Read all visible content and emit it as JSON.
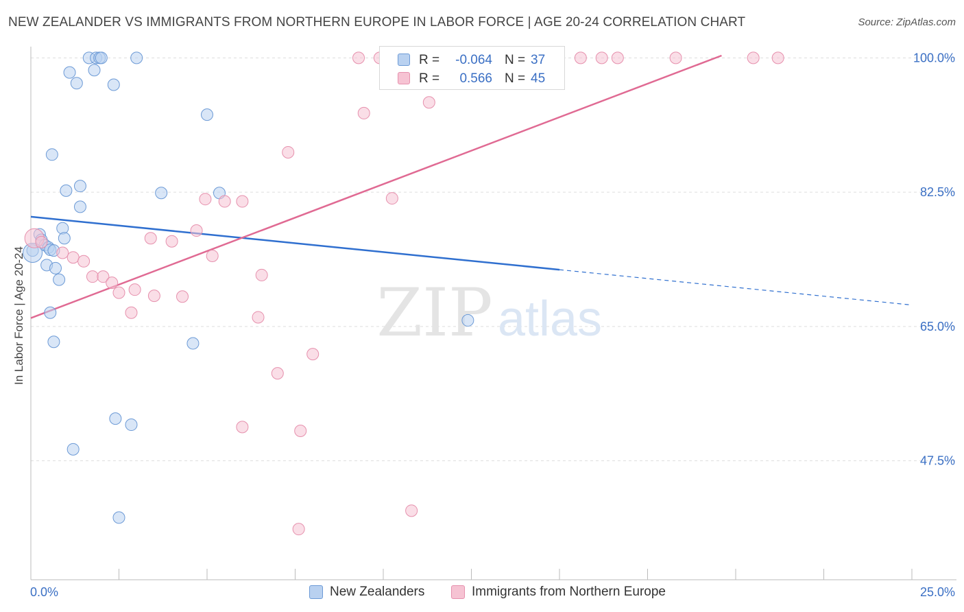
{
  "title": "NEW ZEALANDER VS IMMIGRANTS FROM NORTHERN EUROPE IN LABOR FORCE | AGE 20-24 CORRELATION CHART",
  "source": "Source: ZipAtlas.com",
  "watermark": {
    "zip": "ZIP",
    "atlas": "atlas"
  },
  "stats": {
    "row1": {
      "r_label": "R =",
      "r_value": "-0.064",
      "n_label": "N =",
      "n_value": "37"
    },
    "row2": {
      "r_label": "R =",
      "r_value": "0.566",
      "n_label": "N =",
      "n_value": "45"
    }
  },
  "legend": {
    "series1": "New Zealanders",
    "series2": "Immigrants from Northern Europe"
  },
  "colors": {
    "blue_fill": "#b9d1f0",
    "blue_stroke": "#6c9ad6",
    "blue_line": "#2f6fcf",
    "pink_fill": "#f6c3d3",
    "pink_stroke": "#e690ad",
    "pink_line": "#e06a93",
    "tick_label": "#3a6fc4",
    "grid": "#dddddd"
  },
  "chart_data": {
    "type": "scatter",
    "xlabel": "",
    "ylabel": "In Labor Force | Age 20-24",
    "xlim": [
      0,
      25
    ],
    "ylim": [
      32,
      102
    ],
    "x_tick_labels": [
      "0.0%",
      "25.0%"
    ],
    "y_ticks": [
      100,
      82.5,
      65,
      47.5
    ],
    "y_tick_labels": [
      "100.0%",
      "82.5%",
      "65.0%",
      "47.5%"
    ],
    "grid": "horizontal dashed",
    "legend_position": "bottom-center",
    "series": [
      {
        "name": "New Zealanders",
        "points": [
          [
            0.05,
            74.9
          ],
          [
            0.25,
            77.0
          ],
          [
            0.3,
            76.3
          ],
          [
            0.4,
            75.6
          ],
          [
            0.5,
            75.3
          ],
          [
            0.45,
            73.0
          ],
          [
            0.55,
            75.0
          ],
          [
            0.65,
            74.9
          ],
          [
            0.7,
            72.6
          ],
          [
            0.8,
            71.1
          ],
          [
            0.55,
            66.8
          ],
          [
            0.65,
            63.0
          ],
          [
            0.9,
            77.8
          ],
          [
            0.95,
            76.5
          ],
          [
            1.0,
            82.7
          ],
          [
            1.4,
            83.3
          ],
          [
            1.4,
            80.6
          ],
          [
            0.6,
            87.4
          ],
          [
            1.1,
            98.1
          ],
          [
            1.3,
            96.7
          ],
          [
            1.65,
            100.0
          ],
          [
            1.85,
            100.0
          ],
          [
            1.95,
            100.0
          ],
          [
            2.0,
            100.0
          ],
          [
            1.8,
            98.4
          ],
          [
            2.35,
            96.5
          ],
          [
            3.0,
            100.0
          ],
          [
            3.7,
            82.4
          ],
          [
            5.0,
            92.6
          ],
          [
            5.35,
            82.4
          ],
          [
            4.6,
            62.8
          ],
          [
            2.4,
            53.0
          ],
          [
            2.85,
            52.2
          ],
          [
            1.2,
            49.0
          ],
          [
            2.5,
            40.1
          ],
          [
            12.4,
            65.8
          ],
          [
            0.05,
            74.6
          ]
        ]
      },
      {
        "name": "Immigrants from Northern Europe",
        "points": [
          [
            0.1,
            76.5
          ],
          [
            0.3,
            76.0
          ],
          [
            0.9,
            74.6
          ],
          [
            1.2,
            74.0
          ],
          [
            1.5,
            73.5
          ],
          [
            1.75,
            71.5
          ],
          [
            2.05,
            71.5
          ],
          [
            2.3,
            70.7
          ],
          [
            2.5,
            69.4
          ],
          [
            2.95,
            69.8
          ],
          [
            2.85,
            66.8
          ],
          [
            3.5,
            69.0
          ],
          [
            4.3,
            68.9
          ],
          [
            3.4,
            76.5
          ],
          [
            4.0,
            76.1
          ],
          [
            4.7,
            77.5
          ],
          [
            5.15,
            74.2
          ],
          [
            4.95,
            81.6
          ],
          [
            5.5,
            81.3
          ],
          [
            6.0,
            81.3
          ],
          [
            6.55,
            71.7
          ],
          [
            6.45,
            66.2
          ],
          [
            7.0,
            58.9
          ],
          [
            7.3,
            87.7
          ],
          [
            8.0,
            61.4
          ],
          [
            6.0,
            51.9
          ],
          [
            7.65,
            51.4
          ],
          [
            7.6,
            38.6
          ],
          [
            10.8,
            41.0
          ],
          [
            9.45,
            92.8
          ],
          [
            11.3,
            94.2
          ],
          [
            10.25,
            81.7
          ],
          [
            9.3,
            100.0
          ],
          [
            9.9,
            100.0
          ],
          [
            10.2,
            100.0
          ],
          [
            10.6,
            100.0
          ],
          [
            11.0,
            100.0
          ],
          [
            14.0,
            100.0
          ],
          [
            15.6,
            100.0
          ],
          [
            16.2,
            100.0
          ],
          [
            16.65,
            100.0
          ],
          [
            18.3,
            100.0
          ],
          [
            20.5,
            100.0
          ],
          [
            21.2,
            100.0
          ],
          [
            12.9,
            100.0
          ]
        ]
      }
    ],
    "trend_lines": [
      {
        "series": "New Zealanders",
        "from": [
          0,
          79.3
        ],
        "to": [
          15.0,
          72.4
        ],
        "dashed_to": [
          25,
          67.8
        ]
      },
      {
        "series": "Immigrants from Northern Europe",
        "from": [
          0,
          66.1
        ],
        "to": [
          19.6,
          100.3
        ]
      }
    ]
  }
}
